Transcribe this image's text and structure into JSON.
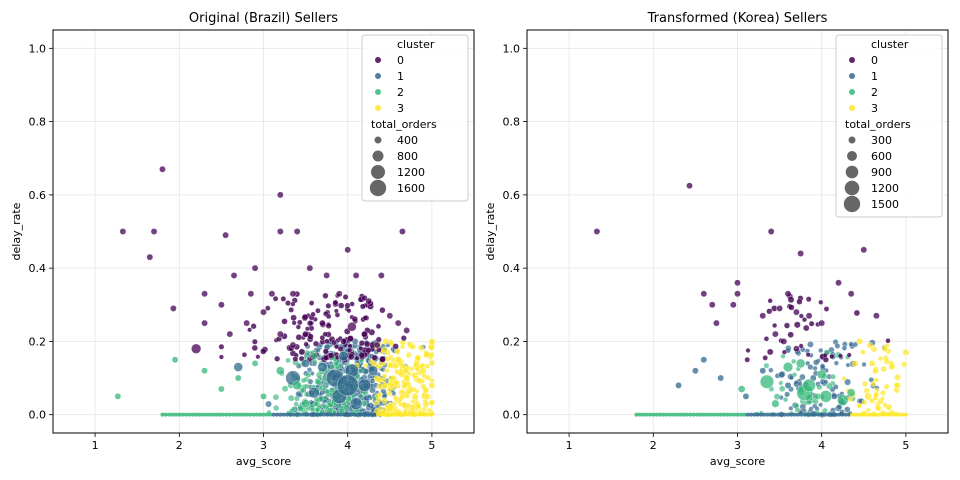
{
  "chart_data": [
    {
      "type": "scatter",
      "title": "Original (Brazil) Sellers",
      "xlabel": "avg_score",
      "ylabel": "delay_rate",
      "xlim": [
        0.5,
        5.5
      ],
      "ylim": [
        -0.05,
        1.05
      ],
      "xticks": [
        1,
        2,
        3,
        4,
        5
      ],
      "yticks": [
        0.0,
        0.2,
        0.4,
        0.6,
        0.8,
        1.0
      ],
      "grid": true,
      "legend_position": "upper-right",
      "legend": {
        "hue_title": "cluster",
        "hue_entries": [
          {
            "label": "0",
            "color": "#440154"
          },
          {
            "label": "1",
            "color": "#31688e"
          },
          {
            "label": "2",
            "color": "#35b779"
          },
          {
            "label": "3",
            "color": "#fde725"
          }
        ],
        "size_title": "total_orders",
        "size_entries": [
          "400",
          "800",
          "1200",
          "1600"
        ],
        "size_values": [
          400,
          800,
          1200,
          1600
        ]
      },
      "points": [
        [
          1.8,
          0.67,
          0,
          5
        ],
        [
          3.2,
          0.6,
          0,
          5
        ],
        [
          1.33,
          0.5,
          0,
          5
        ],
        [
          1.7,
          0.5,
          0,
          5
        ],
        [
          1.65,
          0.43,
          0,
          5
        ],
        [
          2.55,
          0.49,
          0,
          5
        ],
        [
          3.4,
          0.5,
          0,
          5
        ],
        [
          3.2,
          0.5,
          0,
          5
        ],
        [
          4.0,
          0.45,
          0,
          5
        ],
        [
          4.65,
          0.5,
          0,
          5
        ],
        [
          1.93,
          0.29,
          0,
          5
        ],
        [
          2.65,
          0.38,
          0,
          5
        ],
        [
          2.9,
          0.4,
          0,
          5
        ],
        [
          3.55,
          0.4,
          0,
          5
        ],
        [
          3.75,
          0.38,
          0,
          5
        ],
        [
          4.1,
          0.38,
          0,
          5
        ],
        [
          4.4,
          0.38,
          0,
          5
        ],
        [
          2.3,
          0.33,
          0,
          5
        ],
        [
          2.5,
          0.3,
          0,
          5
        ],
        [
          2.85,
          0.33,
          0,
          5
        ],
        [
          3.1,
          0.33,
          0,
          5
        ],
        [
          3.35,
          0.33,
          0,
          5
        ],
        [
          3.9,
          0.33,
          0,
          5
        ],
        [
          4.25,
          0.31,
          0,
          5
        ],
        [
          2.2,
          0.18,
          0,
          40
        ],
        [
          2.3,
          0.25,
          0,
          5
        ],
        [
          2.8,
          0.25,
          0,
          5
        ],
        [
          3.35,
          0.19,
          0,
          5
        ],
        [
          4.05,
          0.24,
          0,
          30
        ],
        [
          4.5,
          0.27,
          0,
          5
        ],
        [
          4.6,
          0.25,
          0,
          5
        ],
        [
          4.7,
          0.23,
          0,
          5
        ],
        [
          3.0,
          0.28,
          0,
          5
        ],
        [
          3.2,
          0.22,
          0,
          5
        ],
        [
          3.5,
          0.22,
          0,
          5
        ],
        [
          3.7,
          0.25,
          0,
          5
        ],
        [
          3.95,
          0.2,
          0,
          5
        ],
        [
          4.2,
          0.22,
          0,
          5
        ],
        [
          4.35,
          0.19,
          0,
          5
        ],
        [
          2.6,
          0.22,
          0,
          5
        ],
        [
          2.7,
          0.13,
          1,
          30
        ],
        [
          3.35,
          0.1,
          1,
          150
        ],
        [
          3.85,
          0.1,
          1,
          250
        ],
        [
          3.9,
          0.05,
          1,
          150
        ],
        [
          4.05,
          0.12,
          1,
          120
        ],
        [
          4.2,
          0.08,
          1,
          100
        ],
        [
          3.6,
          0.06,
          1,
          60
        ],
        [
          4.1,
          0.03,
          1,
          80
        ],
        [
          3.7,
          0.13,
          1,
          40
        ],
        [
          3.95,
          0.16,
          1,
          40
        ],
        [
          4.3,
          0.12,
          1,
          40
        ],
        [
          3.5,
          0.14,
          1,
          20
        ],
        [
          4.0,
          0.08,
          1,
          400
        ],
        [
          1.27,
          0.05,
          2,
          5
        ],
        [
          1.95,
          0.15,
          2,
          5
        ],
        [
          2.3,
          0.12,
          2,
          5
        ],
        [
          2.5,
          0.07,
          2,
          5
        ],
        [
          2.7,
          0.1,
          2,
          5
        ],
        [
          2.9,
          0.14,
          2,
          5
        ],
        [
          3.0,
          0.05,
          2,
          5
        ],
        [
          3.2,
          0.12,
          2,
          20
        ],
        [
          3.4,
          0.08,
          2,
          30
        ],
        [
          3.5,
          0.03,
          2,
          20
        ],
        [
          3.6,
          0.16,
          2,
          10
        ],
        [
          4.45,
          0.2,
          3,
          5
        ],
        [
          4.6,
          0.15,
          3,
          10
        ],
        [
          4.7,
          0.1,
          3,
          5
        ],
        [
          4.8,
          0.05,
          3,
          5
        ],
        [
          4.9,
          0.12,
          3,
          5
        ],
        [
          5.0,
          0.2,
          3,
          5
        ],
        [
          5.0,
          0.08,
          3,
          5
        ],
        [
          4.5,
          0.02,
          3,
          20
        ]
      ]
    },
    {
      "type": "scatter",
      "title": "Transformed (Korea) Sellers",
      "xlabel": "avg_score",
      "ylabel": "delay_rate",
      "xlim": [
        0.5,
        5.5
      ],
      "ylim": [
        -0.05,
        1.05
      ],
      "xticks": [
        1,
        2,
        3,
        4,
        5
      ],
      "yticks": [
        0.0,
        0.2,
        0.4,
        0.6,
        0.8,
        1.0
      ],
      "grid": true,
      "legend_position": "upper-right",
      "legend": {
        "hue_title": "cluster",
        "hue_entries": [
          {
            "label": "0",
            "color": "#440154"
          },
          {
            "label": "1",
            "color": "#31688e"
          },
          {
            "label": "2",
            "color": "#35b779"
          },
          {
            "label": "3",
            "color": "#fde725"
          }
        ],
        "size_title": "total_orders",
        "size_entries": [
          "300",
          "600",
          "900",
          "1200",
          "1500"
        ],
        "size_values": [
          300,
          600,
          900,
          1200,
          1500
        ]
      },
      "points": [
        [
          2.43,
          0.625,
          0,
          5
        ],
        [
          1.33,
          0.5,
          0,
          5
        ],
        [
          3.4,
          0.5,
          0,
          5
        ],
        [
          4.5,
          0.45,
          0,
          5
        ],
        [
          3.75,
          0.44,
          0,
          5
        ],
        [
          2.6,
          0.33,
          0,
          5
        ],
        [
          2.7,
          0.3,
          0,
          5
        ],
        [
          3.0,
          0.36,
          0,
          5
        ],
        [
          3.0,
          0.33,
          0,
          5
        ],
        [
          2.95,
          0.3,
          0,
          5
        ],
        [
          3.6,
          0.33,
          0,
          5
        ],
        [
          3.5,
          0.29,
          0,
          5
        ],
        [
          3.7,
          0.28,
          0,
          5
        ],
        [
          4.2,
          0.36,
          0,
          5
        ],
        [
          4.35,
          0.33,
          0,
          5
        ],
        [
          4.65,
          0.27,
          0,
          5
        ],
        [
          2.75,
          0.25,
          0,
          5
        ],
        [
          3.3,
          0.27,
          0,
          5
        ],
        [
          3.85,
          0.27,
          0,
          5
        ],
        [
          4.0,
          0.25,
          0,
          5
        ],
        [
          3.45,
          0.22,
          0,
          5
        ],
        [
          3.55,
          0.2,
          0,
          5
        ],
        [
          3.7,
          0.18,
          0,
          5
        ],
        [
          2.3,
          0.08,
          1,
          5
        ],
        [
          2.5,
          0.12,
          1,
          5
        ],
        [
          2.6,
          0.15,
          1,
          5
        ],
        [
          2.8,
          0.1,
          1,
          5
        ],
        [
          3.1,
          0.05,
          1,
          5
        ],
        [
          3.3,
          0.12,
          1,
          5
        ],
        [
          3.6,
          0.08,
          1,
          5
        ],
        [
          3.9,
          0.1,
          1,
          5
        ],
        [
          4.15,
          0.05,
          1,
          5
        ],
        [
          3.35,
          0.09,
          2,
          120
        ],
        [
          3.8,
          0.06,
          2,
          200
        ],
        [
          3.85,
          0.08,
          2,
          100
        ],
        [
          4.05,
          0.05,
          2,
          80
        ],
        [
          4.25,
          0.04,
          2,
          60
        ],
        [
          3.6,
          0.13,
          2,
          40
        ],
        [
          3.75,
          0.14,
          2,
          30
        ],
        [
          4.0,
          0.11,
          2,
          30
        ],
        [
          4.35,
          0.06,
          2,
          20
        ],
        [
          3.45,
          0.03,
          2,
          15
        ],
        [
          3.05,
          0.07,
          2,
          10
        ],
        [
          4.45,
          0.2,
          3,
          5
        ],
        [
          4.6,
          0.14,
          3,
          5
        ],
        [
          4.75,
          0.18,
          3,
          5
        ],
        [
          4.9,
          0.08,
          3,
          5
        ],
        [
          5.0,
          0.17,
          3,
          5
        ],
        [
          4.55,
          0.05,
          3,
          10
        ],
        [
          4.8,
          0.02,
          3,
          5
        ]
      ]
    }
  ]
}
